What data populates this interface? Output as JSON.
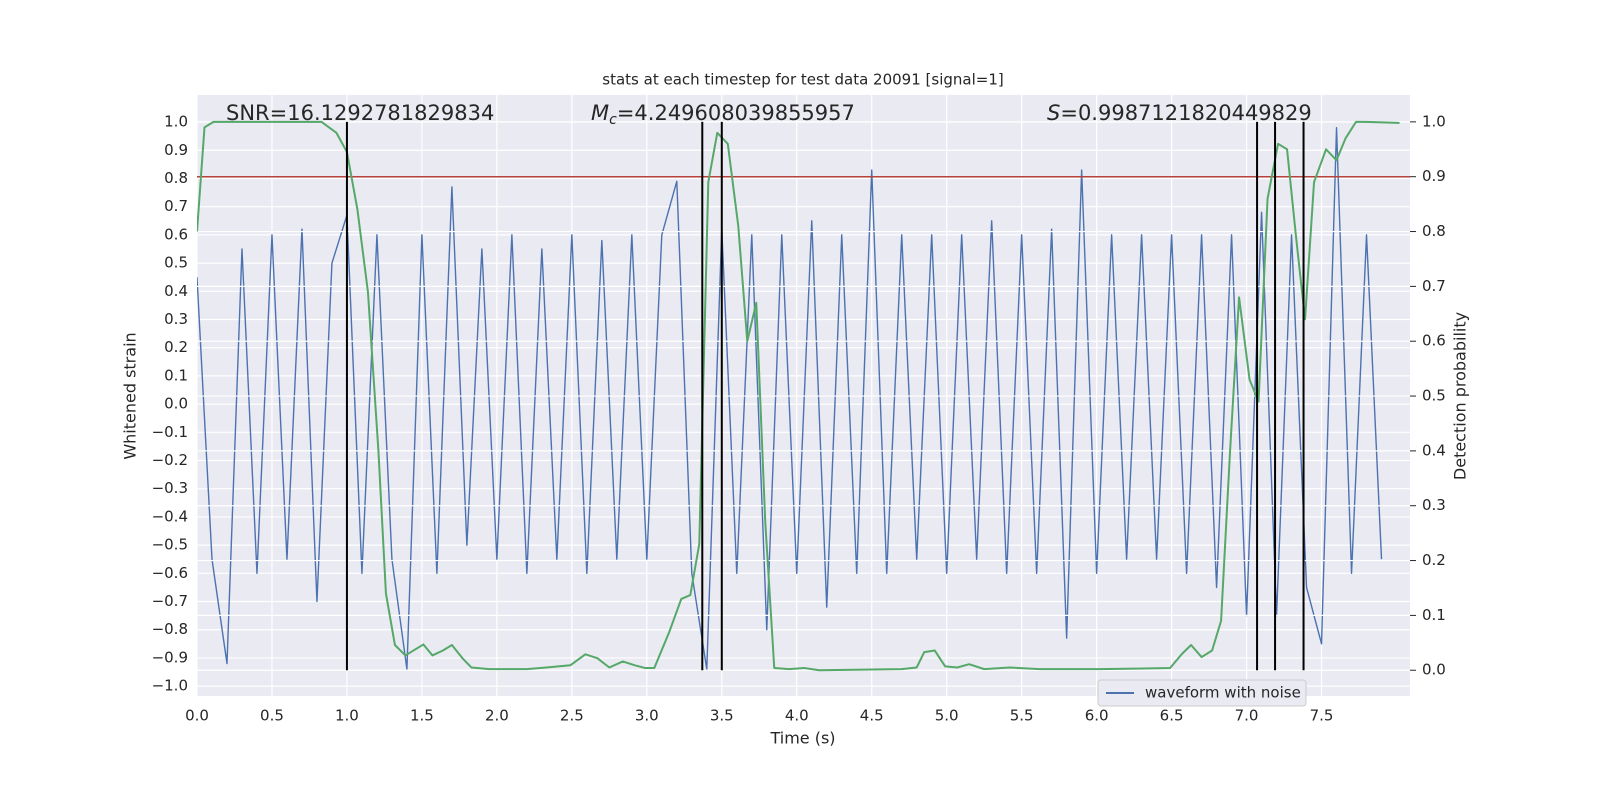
{
  "chart_data": {
    "type": "line",
    "title": "stats at each timestep for test data 20091 [signal=1]",
    "xlabel": "Time (s)",
    "ylabel": "Whitened strain",
    "y2label": "Detection probability",
    "annotations": [
      {
        "text": "SNR=16.1292781829834"
      },
      {
        "symbol": "M",
        "subscript": "c",
        "text": "=4.249608039855957"
      },
      {
        "symbol": "S",
        "text": "=0.9987121820449829"
      }
    ],
    "xlim": [
      0,
      8.09
    ],
    "ylim": [
      -1.035,
      1.096
    ],
    "y2lim": [
      -0.047,
      1.049
    ],
    "xticks": [
      {
        "value": 0,
        "label": "0.0"
      },
      0.5,
      {
        "value": 1,
        "label": "1.0"
      },
      1.5,
      {
        "value": 2,
        "label": "2.0"
      },
      2.5,
      {
        "value": 3,
        "label": "3.0"
      },
      3.5,
      {
        "value": 4,
        "label": "4.0"
      },
      4.5,
      {
        "value": 5,
        "label": "5.0"
      },
      5.5,
      {
        "value": 6,
        "label": "6.0"
      },
      6.5,
      {
        "value": 7,
        "label": "7.0"
      },
      7.5
    ],
    "yticks": [
      {
        "value": -1,
        "label": "−1.0"
      },
      {
        "value": -0.9,
        "label": "−0.9"
      },
      {
        "value": -0.8,
        "label": "−0.8"
      },
      {
        "value": -0.7,
        "label": "−0.7"
      },
      {
        "value": -0.6,
        "label": "−0.6"
      },
      {
        "value": -0.5,
        "label": "−0.5"
      },
      {
        "value": -0.4,
        "label": "−0.4"
      },
      {
        "value": -0.3,
        "label": "−0.3"
      },
      {
        "value": -0.2,
        "label": "−0.2"
      },
      {
        "value": -0.1,
        "label": "−0.1"
      },
      {
        "value": 0,
        "label": "0.0"
      },
      0.1,
      0.2,
      0.3,
      0.4,
      0.5,
      0.6,
      0.7,
      0.8,
      0.9,
      {
        "value": 1,
        "label": "1.0"
      }
    ],
    "y2ticks": [
      {
        "value": 0,
        "label": "0.0"
      },
      0.1,
      0.2,
      0.3,
      0.4,
      0.5,
      0.6,
      0.7,
      0.8,
      0.9,
      {
        "value": 1,
        "label": "1.0"
      }
    ],
    "grid": true,
    "legend": "lower right",
    "threshold": {
      "value": 0.9,
      "axis": "y2",
      "color": "#b8423c"
    },
    "vlines": {
      "x": [
        1.0,
        3.37,
        3.5,
        7.07,
        7.19,
        7.38
      ],
      "ymin": 0,
      "ymax": 1,
      "axis": "y2",
      "color": "#000000"
    },
    "series": [
      {
        "name": "waveform with noise",
        "color": "#4c72b0",
        "x": [
          0,
          0.1,
          0.2,
          0.3,
          0.4,
          0.5,
          0.6,
          0.7,
          0.8,
          0.9,
          1.0,
          1.1,
          1.2,
          1.3,
          1.4,
          1.5,
          1.6,
          1.7,
          1.8,
          1.9,
          2.0,
          2.1,
          2.2,
          2.3,
          2.4,
          2.5,
          2.6,
          2.7,
          2.8,
          2.9,
          3.0,
          3.1,
          3.2,
          3.3,
          3.4,
          3.5,
          3.6,
          3.7,
          3.8,
          3.9,
          4.0,
          4.1,
          4.2,
          4.3,
          4.4,
          4.5,
          4.6,
          4.7,
          4.8,
          4.9,
          5.0,
          5.1,
          5.2,
          5.3,
          5.4,
          5.5,
          5.6,
          5.7,
          5.8,
          5.9,
          6.0,
          6.1,
          6.2,
          6.3,
          6.4,
          6.5,
          6.6,
          6.7,
          6.8,
          6.9,
          7.0,
          7.1,
          7.2,
          7.3,
          7.4,
          7.5,
          7.6,
          7.7,
          7.8,
          7.9
        ],
        "values": [
          0.45,
          -0.55,
          -0.92,
          0.55,
          -0.6,
          0.6,
          -0.55,
          0.62,
          -0.7,
          0.5,
          0.67,
          -0.6,
          0.6,
          -0.55,
          -0.94,
          0.6,
          -0.6,
          0.77,
          -0.5,
          0.55,
          -0.55,
          0.6,
          -0.6,
          0.55,
          -0.55,
          0.6,
          -0.6,
          0.58,
          -0.55,
          0.6,
          -0.55,
          0.6,
          0.79,
          -0.6,
          -0.94,
          0.62,
          -0.6,
          0.6,
          -0.8,
          0.6,
          -0.6,
          0.65,
          -0.72,
          0.6,
          -0.6,
          0.83,
          -0.6,
          0.6,
          -0.55,
          0.6,
          -0.6,
          0.6,
          -0.55,
          0.65,
          -0.6,
          0.6,
          -0.6,
          0.62,
          -0.83,
          0.83,
          -0.6,
          0.6,
          -0.55,
          0.6,
          -0.55,
          0.6,
          -0.6,
          0.6,
          -0.65,
          0.6,
          -0.75,
          0.68,
          -0.75,
          0.6,
          -0.65,
          -0.85,
          0.98,
          -0.6,
          0.6,
          -0.55
        ]
      },
      {
        "color": "#55a868",
        "axis": "y2",
        "x": [
          0,
          0.05,
          0.11,
          0.83,
          0.93,
          1.0,
          1.07,
          1.14,
          1.21,
          1.26,
          1.32,
          1.39,
          1.51,
          1.57,
          1.64,
          1.7,
          1.77,
          1.83,
          1.95,
          2.2,
          2.33,
          2.49,
          2.59,
          2.67,
          2.75,
          2.84,
          2.92,
          2.99,
          3.05,
          3.15,
          3.23,
          3.29,
          3.35,
          3.41,
          3.47,
          3.54,
          3.61,
          3.67,
          3.73,
          3.79,
          3.85,
          3.95,
          4.05,
          4.15,
          4.7,
          4.8,
          4.85,
          4.92,
          4.99,
          5.07,
          5.15,
          5.25,
          5.42,
          5.62,
          6.02,
          6.49,
          6.57,
          6.63,
          6.7,
          6.77,
          6.83,
          6.89,
          6.95,
          7.02,
          7.08,
          7.14,
          7.21,
          7.27,
          7.33,
          7.39,
          7.45,
          7.53,
          7.6,
          7.66,
          7.73,
          7.79,
          8.02
        ],
        "values": [
          0.8,
          0.99,
          1.0,
          1.0,
          0.98,
          0.945,
          0.84,
          0.69,
          0.4,
          0.14,
          0.046,
          0.027,
          0.047,
          0.027,
          0.036,
          0.046,
          0.022,
          0.005,
          0.002,
          0.002,
          0.005,
          0.009,
          0.029,
          0.022,
          0.005,
          0.016,
          0.009,
          0.004,
          0.004,
          0.07,
          0.13,
          0.137,
          0.23,
          0.89,
          0.98,
          0.96,
          0.81,
          0.6,
          0.67,
          0.27,
          0.004,
          0.002,
          0.004,
          0,
          0.002,
          0.005,
          0.033,
          0.036,
          0.007,
          0.005,
          0.011,
          0.002,
          0.005,
          0.002,
          0.002,
          0.004,
          0.03,
          0.046,
          0.024,
          0.036,
          0.09,
          0.4,
          0.68,
          0.53,
          0.49,
          0.86,
          0.96,
          0.95,
          0.79,
          0.64,
          0.89,
          0.95,
          0.93,
          0.97,
          1.0,
          1.0,
          0.998
        ]
      }
    ]
  }
}
